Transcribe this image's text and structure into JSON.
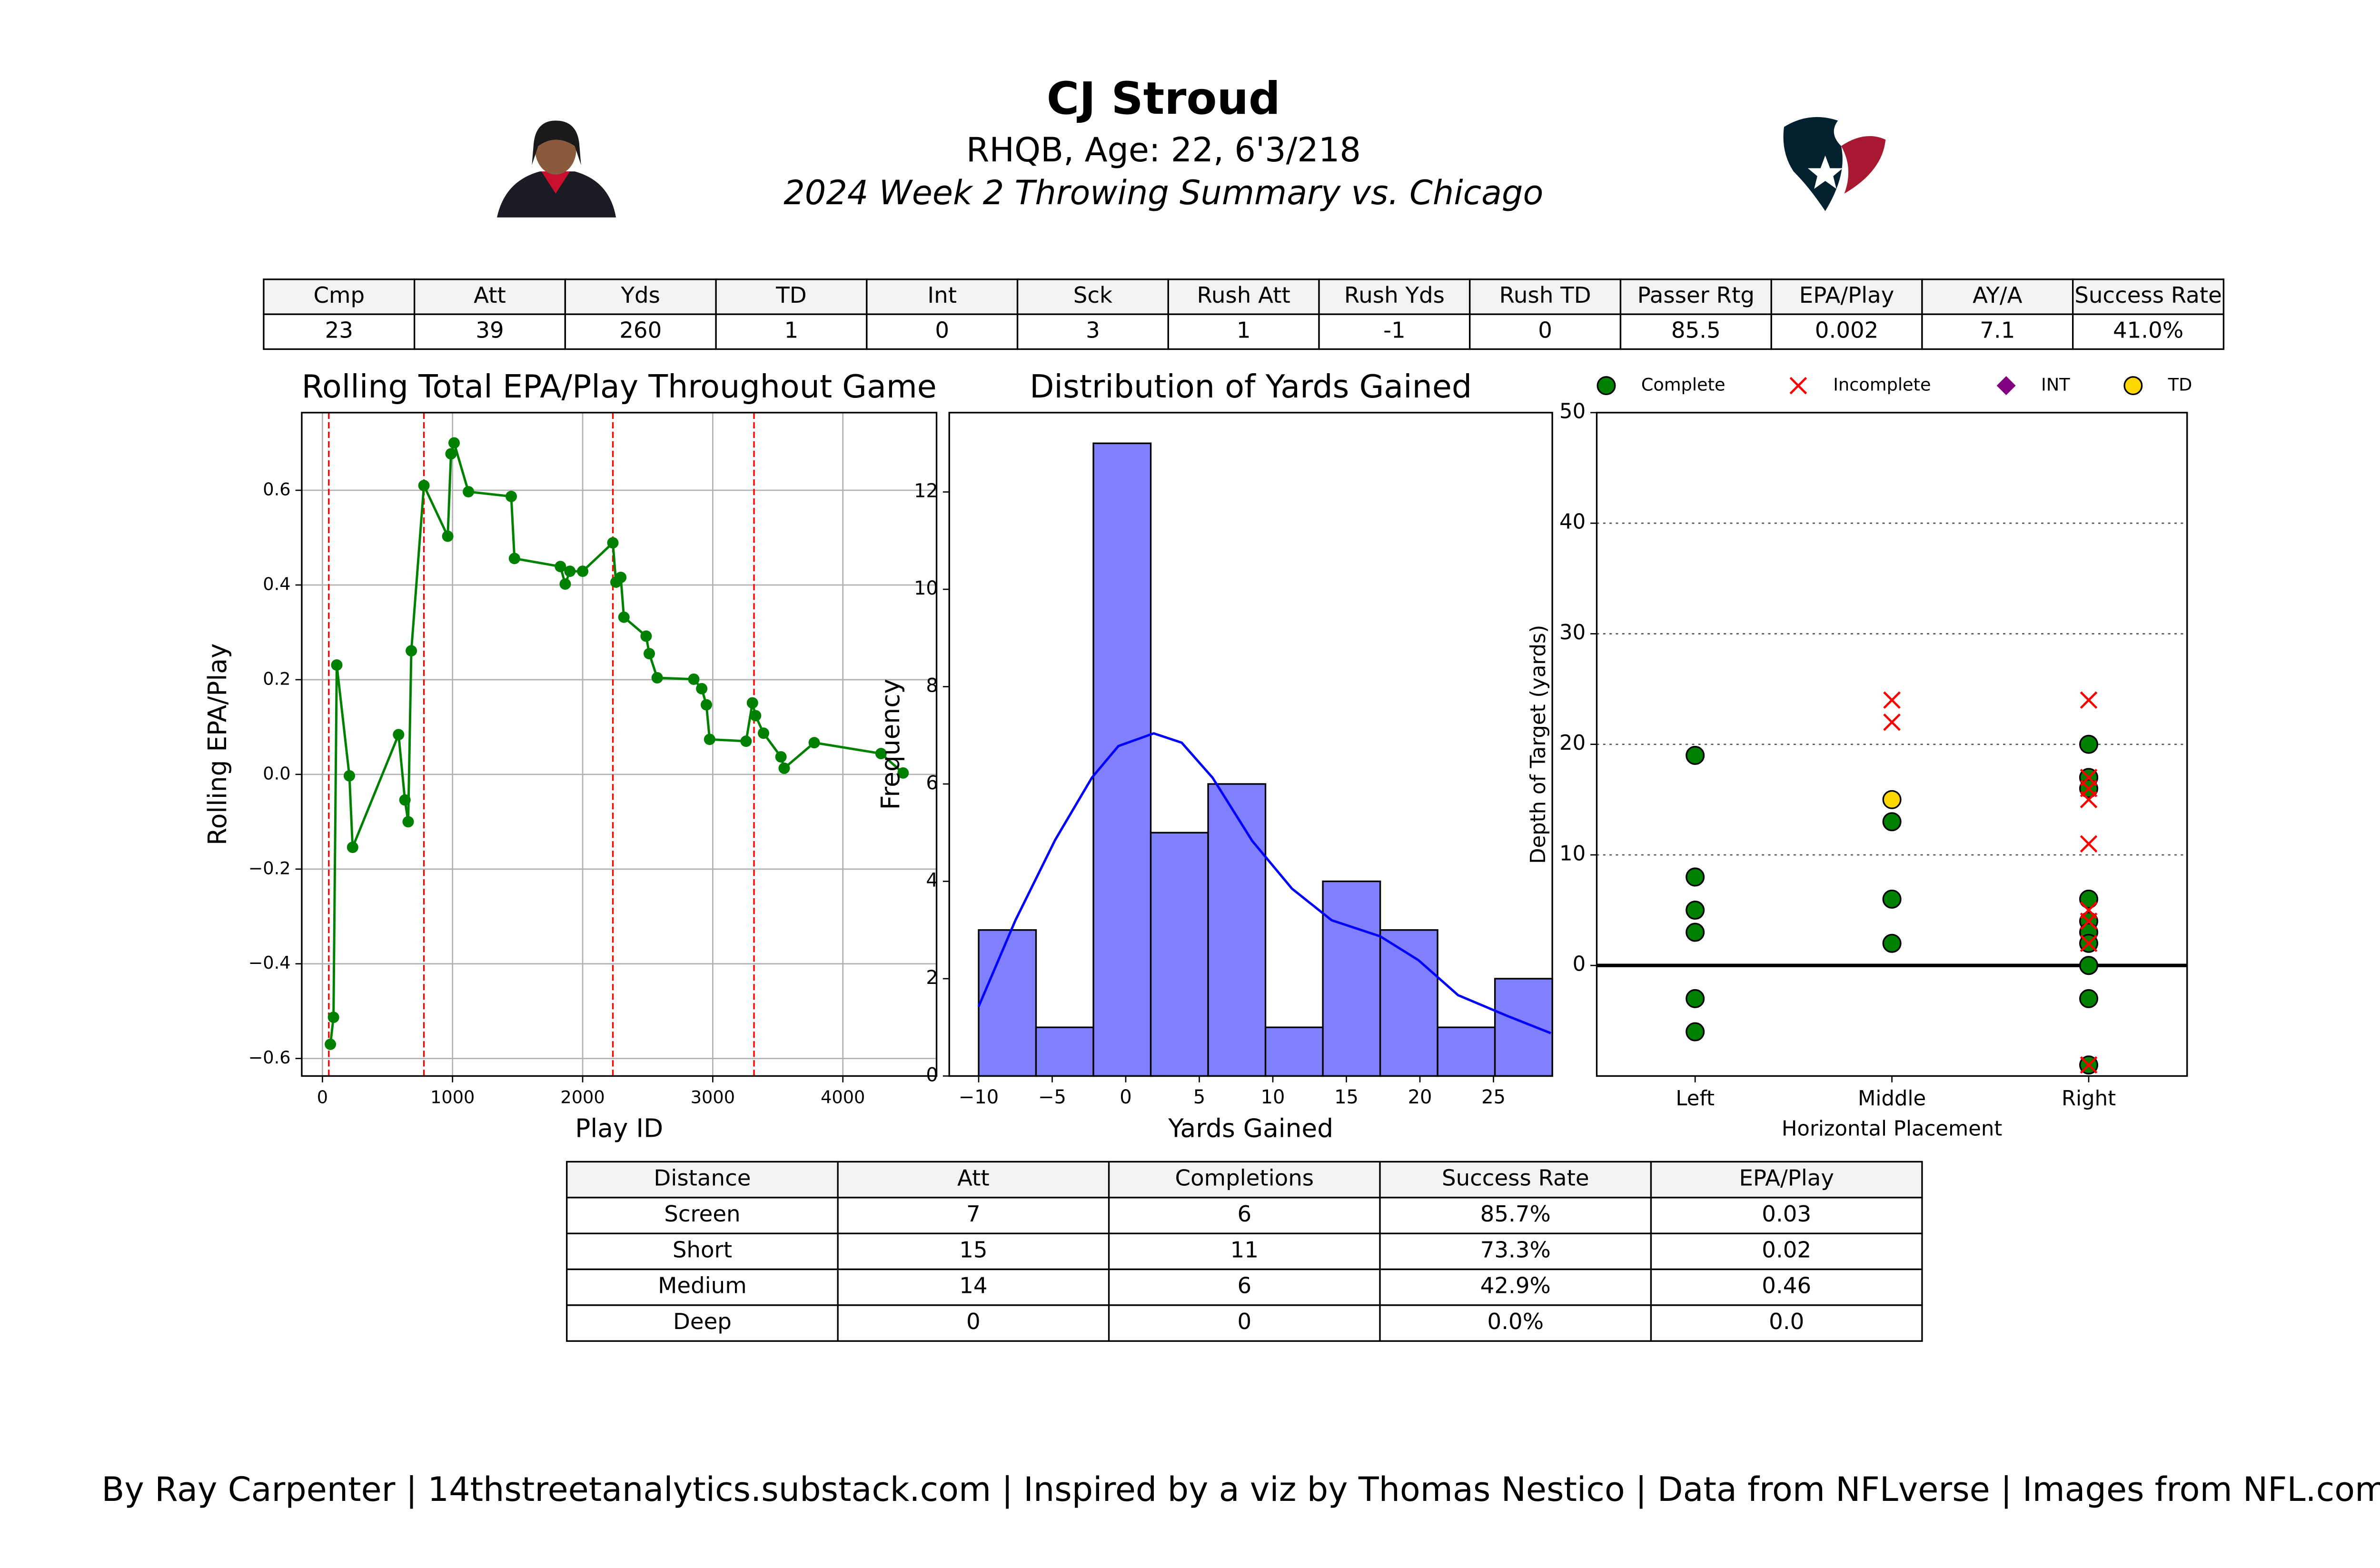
{
  "header": {
    "title": "CJ Stroud",
    "subtitle": "RHQB, Age: 22, 6'3/218",
    "caption": "2024 Week 2 Throwing Summary vs. Chicago"
  },
  "summary_table": {
    "columns": [
      "Cmp",
      "Att",
      "Yds",
      "TD",
      "Int",
      "Sck",
      "Rush Att",
      "Rush Yds",
      "Rush TD",
      "Passer Rtg",
      "EPA/Play",
      "AY/A",
      "Success Rate"
    ],
    "rows": [
      [
        "23",
        "39",
        "260",
        "1",
        "0",
        "3",
        "1",
        "-1",
        "0",
        "85.5",
        "0.002",
        "7.1",
        "41.0%"
      ]
    ]
  },
  "chart_data": [
    {
      "type": "line",
      "title": "Rolling Total EPA/Play Throughout Game",
      "xlabel": "Play ID",
      "ylabel": "Rolling EPA/Play",
      "x": [
        61,
        85,
        110,
        207,
        232,
        585,
        634,
        659,
        683,
        780,
        963,
        988,
        1012,
        1122,
        1451,
        1476,
        1829,
        1866,
        1902,
        2000,
        2232,
        2256,
        2293,
        2317,
        2488,
        2512,
        2573,
        2854,
        2915,
        2951,
        2976,
        3256,
        3305,
        3329,
        3390,
        3524,
        3549,
        3780,
        4293,
        4463
      ],
      "values": [
        -0.57,
        -0.513,
        0.231,
        -0.003,
        -0.154,
        0.084,
        -0.054,
        -0.1,
        0.261,
        0.61,
        0.503,
        0.677,
        0.7,
        0.597,
        0.587,
        0.456,
        0.439,
        0.402,
        0.429,
        0.429,
        0.489,
        0.406,
        0.416,
        0.332,
        0.292,
        0.255,
        0.204,
        0.201,
        0.181,
        0.147,
        0.074,
        0.07,
        0.151,
        0.124,
        0.087,
        0.037,
        0.013,
        0.067,
        0.044,
        0.003
      ],
      "color": "green",
      "vlines": [
        49,
        780,
        2232,
        3317
      ],
      "vline_color": "red",
      "xlim": [
        -159,
        4720
      ],
      "ylim": [
        -0.637,
        0.764
      ],
      "xticks": [
        0,
        1000,
        2000,
        3000,
        4000
      ],
      "yticks": [
        {
          "value": -0.6,
          "label": "−0.6"
        },
        {
          "value": -0.4,
          "label": "−0.4"
        },
        {
          "value": -0.2,
          "label": "−0.2"
        },
        {
          "value": 0,
          "label": "0.0"
        },
        0.2,
        0.4,
        0.6
      ],
      "grid": "both"
    },
    {
      "type": "histogram",
      "title": "Distribution of Yards Gained",
      "xlabel": "Yards Gained",
      "ylabel": "Frequency",
      "bins": [
        -10,
        -6.1,
        -2.2,
        1.7,
        5.6,
        9.5,
        13.4,
        17.3,
        21.2,
        25.1,
        29
      ],
      "values": [
        3,
        1,
        13,
        5,
        6,
        1,
        4,
        3,
        1,
        2
      ],
      "color": "#8080ff",
      "edgecolor": "#000000",
      "kde": {
        "x": [
          -10,
          -7.5,
          -4.8,
          -2.3,
          -0.5,
          1.9,
          3.8,
          5.9,
          8.6,
          11.3,
          14,
          17.3,
          19.9,
          22.6,
          25.9,
          28.9
        ],
        "values": [
          1.43,
          3.2,
          4.85,
          6.13,
          6.78,
          7.04,
          6.85,
          6.13,
          4.83,
          3.85,
          3.2,
          2.87,
          2.38,
          1.66,
          1.24,
          0.88
        ],
        "color": "blue"
      },
      "xlim": [
        -12,
        29
      ],
      "ylim": [
        0,
        13.63
      ],
      "xticks": [
        {
          "value": -10,
          "label": "−10"
        },
        {
          "value": -5,
          "label": "−5"
        },
        0,
        5,
        10,
        15,
        20,
        25
      ],
      "yticks": [
        0,
        2,
        4,
        6,
        8,
        10,
        12
      ],
      "grid": "none"
    },
    {
      "type": "scatter",
      "xlabel": "Horizontal Placement",
      "ylabel": "Depth of Target (yards)",
      "categories": [
        "Left",
        "Middle",
        "Right"
      ],
      "series": [
        {
          "name": "Complete",
          "color": "green",
          "marker": "circle",
          "x": [
            "Left",
            "Left",
            "Left",
            "Left",
            "Left",
            "Left",
            "Middle",
            "Middle",
            "Middle",
            "Right",
            "Right",
            "Right",
            "Right",
            "Right",
            "Right",
            "Right",
            "Right",
            "Right",
            "Right",
            "Right"
          ],
          "values": [
            19,
            8,
            5,
            3,
            -3,
            -6,
            13,
            6,
            2,
            20,
            17,
            17,
            16,
            6,
            4,
            3,
            2,
            0,
            -3,
            -9
          ]
        },
        {
          "name": "Incomplete",
          "color": "red",
          "marker": "x",
          "x": [
            "Middle",
            "Middle",
            "Right",
            "Right",
            "Right",
            "Right",
            "Right",
            "Right",
            "Right",
            "Right",
            "Right"
          ],
          "values": [
            24,
            22,
            24,
            17,
            16,
            15,
            11,
            5,
            4,
            2,
            -9
          ]
        },
        {
          "name": "INT",
          "color": "purple",
          "marker": "diamond",
          "x": [],
          "values": []
        },
        {
          "name": "TD",
          "color": "gold",
          "marker": "circle",
          "x": [
            "Middle"
          ],
          "values": [
            15
          ]
        }
      ],
      "ylim": [
        -10,
        50
      ],
      "yticks": [
        0,
        10,
        20,
        30,
        40,
        50
      ],
      "grid": "y",
      "grid_style": "dotted",
      "zero_line": true,
      "legend": "top"
    }
  ],
  "distance_table": {
    "columns": [
      "Distance",
      "Att",
      "Completions",
      "Success Rate",
      "EPA/Play"
    ],
    "rows": [
      [
        "Screen",
        "7",
        "6",
        "85.7%",
        "0.03"
      ],
      [
        "Short",
        "15",
        "11",
        "73.3%",
        "0.02"
      ],
      [
        "Medium",
        "14",
        "6",
        "42.9%",
        "0.46"
      ],
      [
        "Deep",
        "0",
        "0",
        "0.0%",
        "0.0"
      ]
    ]
  },
  "footer": "By Ray Carpenter | 14thstreetanalytics.substack.com | Inspired by a viz by Thomas Nestico | Data from NFLverse | Images from NFL.com"
}
